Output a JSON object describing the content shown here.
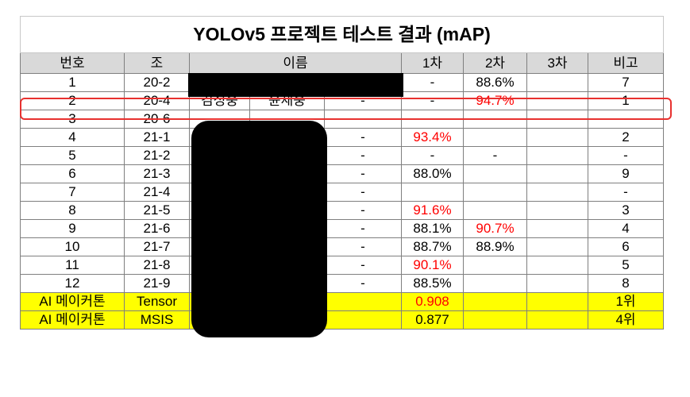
{
  "title": "YOLOv5 프로젝트 테스트 결과 (mAP)",
  "headers": {
    "num": "번호",
    "team": "조",
    "name": "이름",
    "r1": "1차",
    "r2": "2차",
    "r3": "3차",
    "note": "비고"
  },
  "rows": [
    {
      "num": "1",
      "team": "20-2",
      "n1": "",
      "n2": "",
      "n3": "",
      "r1": "-",
      "r2": "88.6%",
      "r3": "",
      "note": "7"
    },
    {
      "num": "2",
      "team": "20-4",
      "n1": "김성웅",
      "n2": "윤재웅",
      "n3": "-",
      "r1": "-",
      "r2": "94.7%",
      "r3": "",
      "note": "1"
    },
    {
      "num": "3",
      "team": "20-6",
      "n1": "",
      "n2": "",
      "n3": "-",
      "r1": "",
      "r2": "",
      "r3": "",
      "note": "-"
    },
    {
      "num": "4",
      "team": "21-1",
      "n1": "",
      "n2": "",
      "n3": "-",
      "r1": "93.4%",
      "r2": "",
      "r3": "",
      "note": "2"
    },
    {
      "num": "5",
      "team": "21-2",
      "n1": "",
      "n2": "",
      "n3": "-",
      "r1": "-",
      "r2": "-",
      "r3": "",
      "note": "-"
    },
    {
      "num": "6",
      "team": "21-3",
      "n1": "",
      "n2": "",
      "n3": "-",
      "r1": "88.0%",
      "r2": "",
      "r3": "",
      "note": "9"
    },
    {
      "num": "7",
      "team": "21-4",
      "n1": "",
      "n2": "",
      "n3": "-",
      "r1": "",
      "r2": "",
      "r3": "",
      "note": "-"
    },
    {
      "num": "8",
      "team": "21-5",
      "n1": "",
      "n2": "",
      "n3": "-",
      "r1": "91.6%",
      "r2": "",
      "r3": "",
      "note": "3"
    },
    {
      "num": "9",
      "team": "21-6",
      "n1": "",
      "n2": "",
      "n3": "-",
      "r1": "88.1%",
      "r2": "90.7%",
      "r3": "",
      "note": "4"
    },
    {
      "num": "10",
      "team": "21-7",
      "n1": "",
      "n2": "",
      "n3": "-",
      "r1": "88.7%",
      "r2": "88.9%",
      "r3": "",
      "note": "6"
    },
    {
      "num": "11",
      "team": "21-8",
      "n1": "",
      "n2": "",
      "n3": "-",
      "r1": "90.1%",
      "r2": "",
      "r3": "",
      "note": "5"
    },
    {
      "num": "12",
      "team": "21-9",
      "n1": "",
      "n2": "",
      "n3": "-",
      "r1": "88.5%",
      "r2": "",
      "r3": "",
      "note": "8"
    },
    {
      "num": "AI 메이커톤",
      "team": "Tensor",
      "n1": "",
      "n2": "",
      "n3": "",
      "r1": "0.908",
      "r2": "",
      "r3": "",
      "note": "1위"
    },
    {
      "num": "AI 메이커톤",
      "team": "MSIS",
      "n1": "",
      "n2": "",
      "n3": "",
      "r1": "0.877",
      "r2": "",
      "r3": "",
      "note": "4위"
    }
  ],
  "colors": {
    "header_bg": "#d9d9d9",
    "highlight_bg": "#ffff00",
    "red_text": "#ff0000",
    "outline": "#e8312f",
    "redaction": "#000000"
  }
}
